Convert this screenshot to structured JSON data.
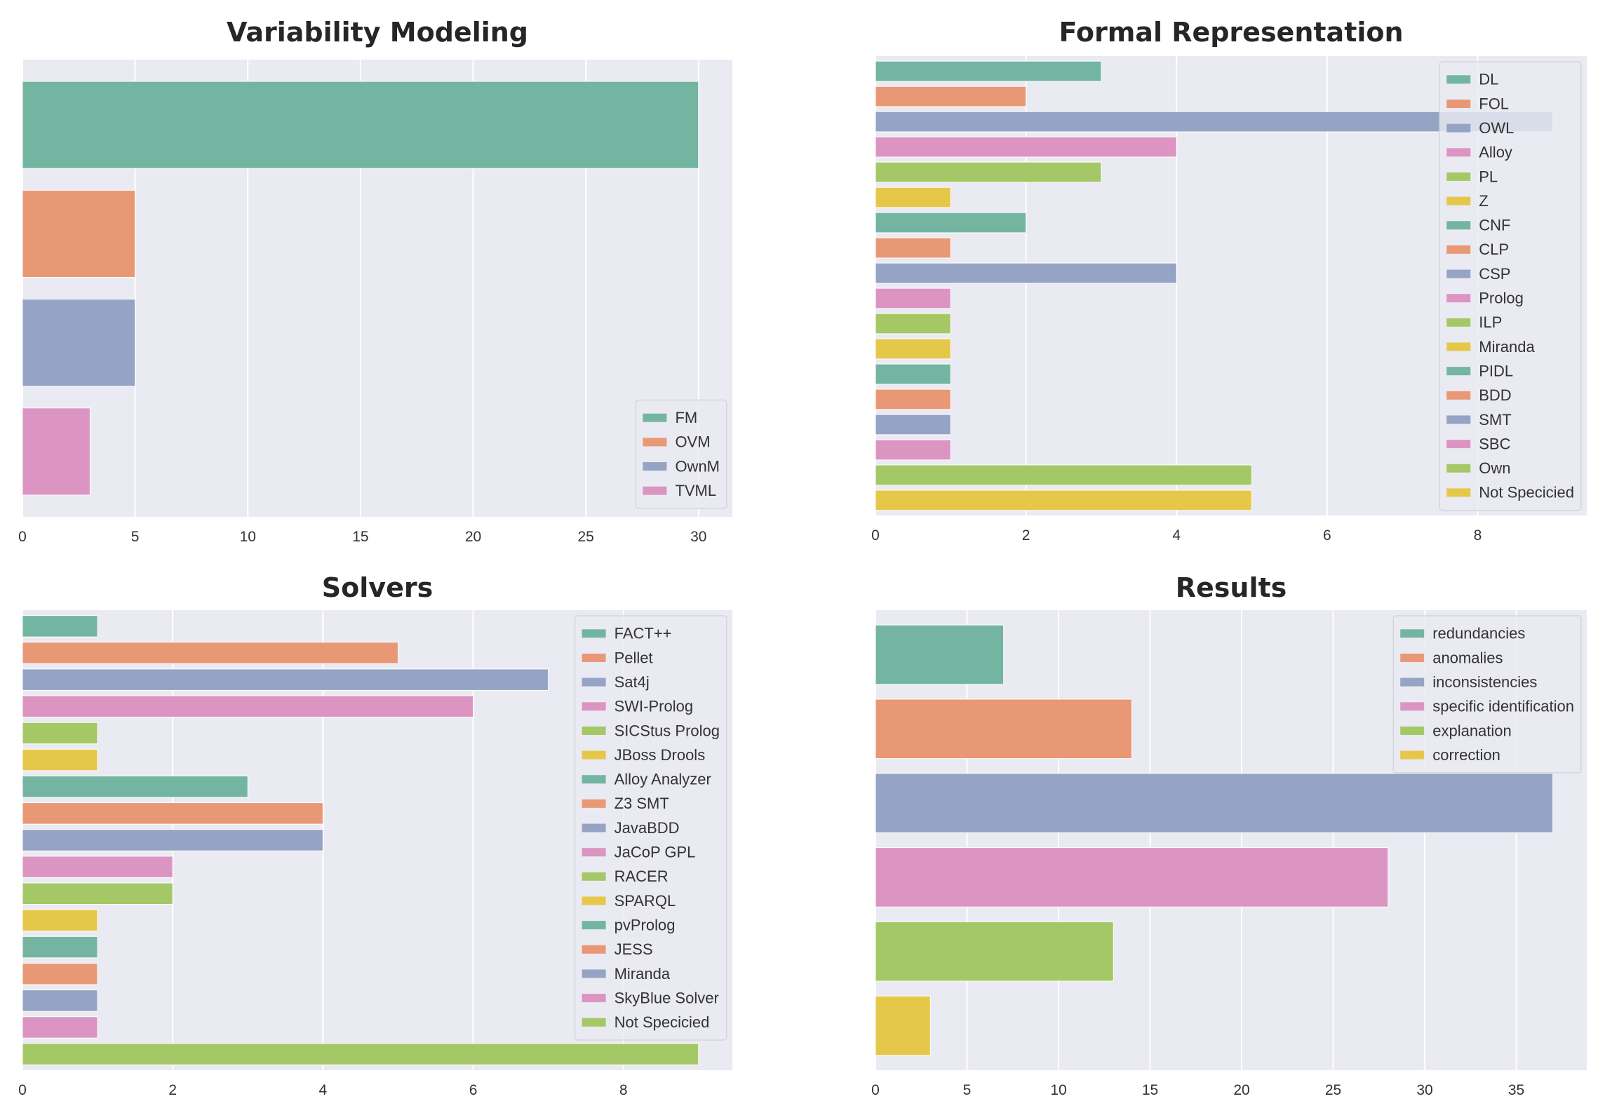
{
  "palette": [
    "#73b5a0",
    "#e99875",
    "#95a3c4",
    "#dc95c2",
    "#a4c866",
    "#e5c84a"
  ],
  "charts": {
    "variability": {
      "title": "Variability Modeling",
      "chart_data": {
        "type": "bar",
        "orientation": "horizontal",
        "title": "Variability Modeling",
        "categories": [
          "FM",
          "OVM",
          "OwnM",
          "TVML"
        ],
        "values": [
          30,
          5,
          5,
          3
        ],
        "xlim": [
          0,
          31.5
        ],
        "xticks": [
          0,
          5,
          10,
          15,
          20,
          25,
          30
        ],
        "legend": "bottom-right",
        "grid": true
      }
    },
    "formal": {
      "title": "Formal Representation",
      "chart_data": {
        "type": "bar",
        "orientation": "horizontal",
        "title": "Formal Representation",
        "categories": [
          "DL",
          "FOL",
          "OWL",
          "Alloy",
          "PL",
          "Z",
          "CNF",
          "CLP",
          "CSP",
          "Prolog",
          "ILP",
          "Miranda",
          "PIDL",
          "BDD",
          "SMT",
          "SBC",
          "Own",
          "Not Specicied"
        ],
        "values": [
          3,
          2,
          9,
          4,
          3,
          1,
          2,
          1,
          4,
          1,
          1,
          1,
          1,
          1,
          1,
          1,
          5,
          5
        ],
        "xlim": [
          0,
          9.45
        ],
        "xticks": [
          0,
          2,
          4,
          6,
          8
        ],
        "legend": "top-right",
        "grid": true
      }
    },
    "solvers": {
      "title": "Solvers",
      "chart_data": {
        "type": "bar",
        "orientation": "horizontal",
        "title": "Solvers",
        "categories": [
          "FACT++",
          "Pellet",
          "Sat4j",
          "SWI-Prolog",
          "SICStus Prolog",
          "JBoss Drools",
          "Alloy Analyzer",
          "Z3 SMT",
          "JavaBDD",
          "JaCoP GPL",
          "RACER",
          "SPARQL",
          "pvProlog",
          "JESS",
          "Miranda",
          "SkyBlue Solver",
          "Not Specicied"
        ],
        "values": [
          1,
          5,
          7,
          6,
          1,
          1,
          3,
          4,
          4,
          2,
          2,
          1,
          1,
          1,
          1,
          1,
          9
        ],
        "xlim": [
          0,
          9.45
        ],
        "xticks": [
          0,
          2,
          4,
          6,
          8
        ],
        "legend": "top-right",
        "grid": true
      }
    },
    "results": {
      "title": "Results",
      "chart_data": {
        "type": "bar",
        "orientation": "horizontal",
        "title": "Results",
        "categories": [
          "redundancies",
          "anomalies",
          "inconsistencies",
          "specific identification",
          "explanation",
          "correction"
        ],
        "values": [
          7,
          14,
          37,
          28,
          13,
          3
        ],
        "xlim": [
          0,
          38.85
        ],
        "xticks": [
          0,
          5,
          10,
          15,
          20,
          25,
          30,
          35
        ],
        "legend": "top-right",
        "grid": true
      }
    }
  }
}
